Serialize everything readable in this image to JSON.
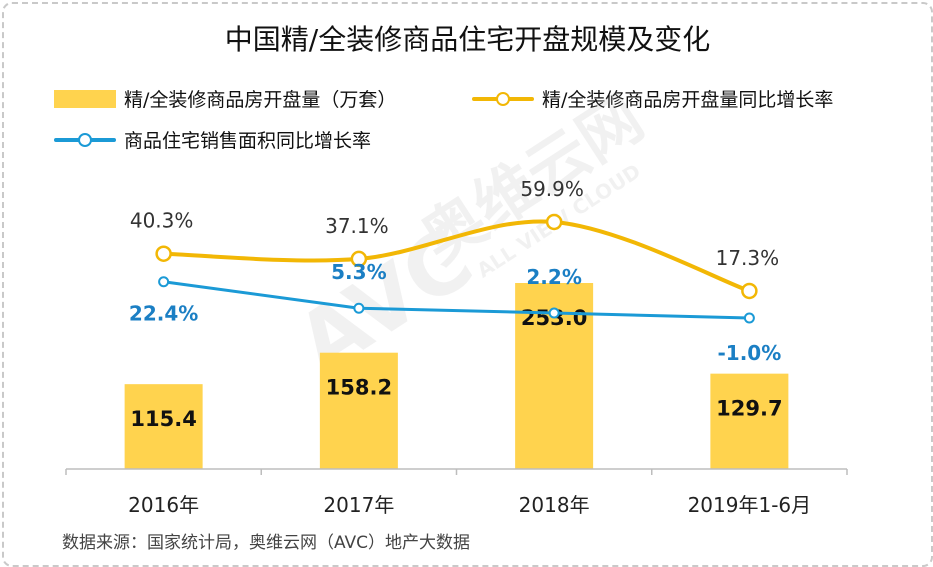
{
  "chart_data": {
    "type": "bar",
    "title": "中国精/全装修商品住宅开盘规模及变化",
    "categories": [
      "2016年",
      "2017年",
      "2018年",
      "2019年1-6月"
    ],
    "series": [
      {
        "name": "精/全装修商品房开盘量（万套）",
        "type": "bar",
        "values": [
          115.4,
          158.2,
          253.0,
          129.7
        ],
        "labels": [
          "115.4",
          "158.2",
          "253.0",
          "129.7"
        ],
        "color": "#FFD34E"
      },
      {
        "name": "精/全装修商品房开盘量同比增长率",
        "type": "line",
        "values": [
          40.3,
          37.1,
          59.9,
          17.3
        ],
        "labels": [
          "40.3%",
          "37.1%",
          "59.9%",
          "17.3%"
        ],
        "color": "#F2B705"
      },
      {
        "name": "商品住宅销售面积同比增长率",
        "type": "line",
        "values": [
          22.4,
          5.3,
          2.2,
          -1.0
        ],
        "labels": [
          "22.4%",
          "5.3%",
          "2.2%",
          "-1.0%"
        ],
        "color": "#1B9AD6"
      }
    ],
    "grid": false,
    "legend_position": "top-left"
  },
  "source": "数据来源：国家统计局，奥维云网（AVC）地产大数据",
  "watermark": "AVC 奥维云网 ALL VIEW CLOUD"
}
